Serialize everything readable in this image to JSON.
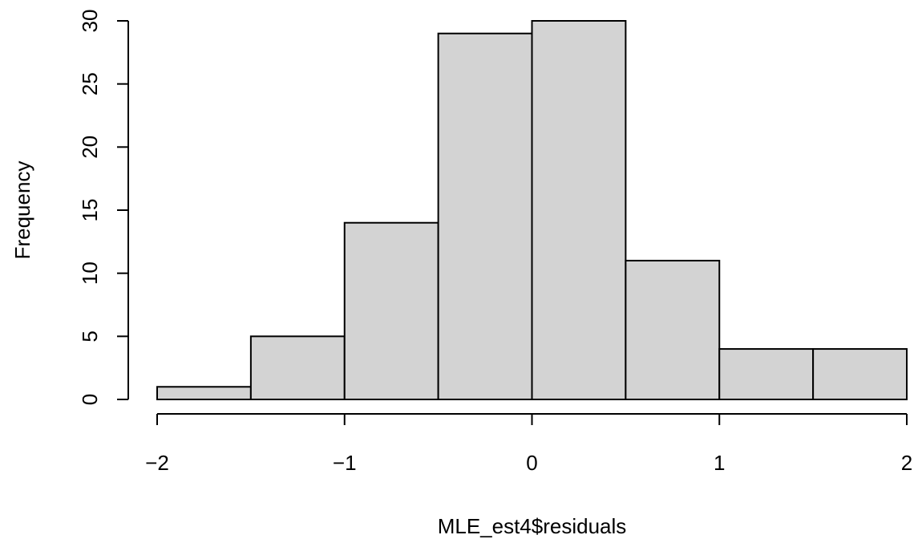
{
  "chart_data": {
    "type": "bar",
    "title": "",
    "xlabel": "MLE_est4$residuals",
    "ylabel": "Frequency",
    "bins": [
      {
        "x0": -2.0,
        "x1": -1.5,
        "count": 1
      },
      {
        "x0": -1.5,
        "x1": -1.0,
        "count": 5
      },
      {
        "x0": -1.0,
        "x1": -0.5,
        "count": 14
      },
      {
        "x0": -0.5,
        "x1": 0.0,
        "count": 29
      },
      {
        "x0": 0.0,
        "x1": 0.5,
        "count": 30
      },
      {
        "x0": 0.5,
        "x1": 1.0,
        "count": 11
      },
      {
        "x0": 1.0,
        "x1": 1.5,
        "count": 4
      },
      {
        "x0": 1.5,
        "x1": 2.0,
        "count": 4
      }
    ],
    "xlim": [
      -2,
      2
    ],
    "ylim": [
      0,
      30
    ],
    "x_ticks": [
      -2,
      -1,
      0,
      1,
      2
    ],
    "x_tick_labels": [
      "−2",
      "−1",
      "0",
      "1",
      "2"
    ],
    "y_ticks": [
      0,
      5,
      10,
      15,
      20,
      25,
      30
    ],
    "y_tick_labels": [
      "0",
      "5",
      "10",
      "15",
      "20",
      "25",
      "30"
    ],
    "grid": false,
    "colors": {
      "bar_fill": "#d3d3d3",
      "bar_stroke": "#000000"
    }
  }
}
